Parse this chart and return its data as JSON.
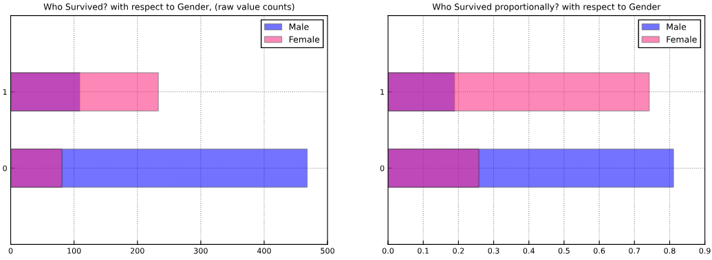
{
  "chart_data": [
    {
      "type": "bar",
      "orientation": "horizontal",
      "title": "Who Survived? with respect to Gender, (raw value counts)",
      "categories": [
        "1",
        "0"
      ],
      "series": [
        {
          "name": "Male",
          "color": "#7373ff",
          "values": [
            109,
            468
          ]
        },
        {
          "name": "Female",
          "color": "#fd88b8",
          "values": [
            233,
            81
          ]
        }
      ],
      "xlim": [
        0,
        500
      ],
      "xticks": [
        0,
        100,
        200,
        300,
        400,
        500
      ],
      "grid": true,
      "legend": "top right"
    },
    {
      "type": "bar",
      "orientation": "horizontal",
      "title": "Who Survived proportionally? with respect to Gender",
      "categories": [
        "1",
        "0"
      ],
      "series": [
        {
          "name": "Male",
          "color": "#7373ff",
          "values": [
            0.189,
            0.811
          ]
        },
        {
          "name": "Female",
          "color": "#fd88b8",
          "values": [
            0.742,
            0.258
          ]
        }
      ],
      "xlim": [
        0,
        0.9
      ],
      "xticks": [
        {
          "value": 0,
          "label": "0.0"
        },
        0.1,
        0.2,
        0.3,
        0.4,
        0.5,
        0.6,
        0.7,
        0.8,
        0.9
      ],
      "grid": true,
      "legend": "top right"
    }
  ]
}
